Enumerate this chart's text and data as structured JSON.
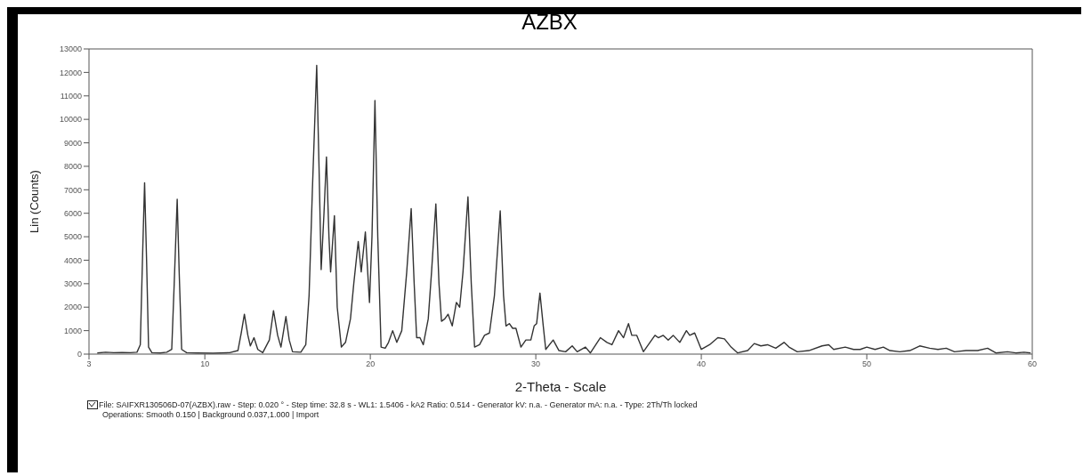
{
  "chart_data": {
    "type": "line",
    "title": "AZBX",
    "xlabel": "2-Theta - Scale",
    "ylabel": "Lin (Counts)",
    "annotations": [
      "File: SAIFXR130506D-07(AZBX).raw - Step: 0.020 ° - Step time: 32.8 s - WL1: 1.5406 - kA2 Ratio: 0.514 - Generator kV: n.a. - Generator mA: n.a. - Type: 2Th/Th locked",
      "Operations: Smooth 0.150 | Background 0.037,1.000 | Import"
    ],
    "xlim": [
      3,
      60
    ],
    "xticks": [
      3,
      10,
      20,
      30,
      40,
      50,
      60
    ],
    "ylim": [
      0,
      13000
    ],
    "yticks": [
      0,
      1000,
      2000,
      3000,
      4000,
      5000,
      6000,
      7000,
      8000,
      9000,
      10000,
      11000,
      12000,
      13000
    ],
    "grid": false,
    "legend": false,
    "marker": "none",
    "line_style": "solid",
    "series": [
      {
        "color": "#333333",
        "x": [
          3.5,
          4.0,
          4.5,
          5.0,
          5.5,
          5.9,
          6.1,
          6.25,
          6.36,
          6.48,
          6.6,
          6.8,
          7.3,
          7.7,
          8.0,
          8.15,
          8.33,
          8.45,
          8.6,
          8.9,
          9.5,
          10.5,
          11.5,
          12.0,
          12.2,
          12.39,
          12.6,
          12.75,
          12.97,
          13.2,
          13.5,
          13.9,
          14.15,
          14.4,
          14.6,
          14.9,
          15.1,
          15.3,
          15.8,
          16.1,
          16.3,
          16.5,
          16.76,
          16.9,
          17.03,
          17.2,
          17.35,
          17.5,
          17.6,
          17.83,
          18.0,
          18.25,
          18.5,
          18.8,
          19.0,
          19.27,
          19.45,
          19.7,
          19.95,
          20.1,
          20.28,
          20.45,
          20.65,
          20.9,
          21.1,
          21.35,
          21.6,
          21.9,
          22.2,
          22.47,
          22.65,
          22.8,
          23.0,
          23.2,
          23.5,
          23.7,
          23.96,
          24.15,
          24.3,
          24.5,
          24.7,
          24.95,
          25.2,
          25.4,
          25.6,
          25.9,
          26.1,
          26.3,
          26.6,
          26.9,
          27.2,
          27.5,
          27.85,
          28.05,
          28.2,
          28.4,
          28.6,
          28.8,
          29.1,
          29.4,
          29.7,
          29.9,
          30.05,
          30.25,
          30.45,
          30.6,
          31.05,
          31.4,
          31.8,
          32.2,
          32.5,
          33.0,
          33.3,
          33.9,
          34.3,
          34.6,
          35.0,
          35.3,
          35.6,
          35.8,
          36.1,
          36.5,
          37.2,
          37.4,
          37.7,
          38.0,
          38.3,
          38.7,
          39.1,
          39.3,
          39.6,
          40.0,
          40.5,
          41.0,
          41.4,
          41.8,
          42.2,
          42.8,
          43.2,
          43.6,
          44.0,
          44.5,
          45.0,
          45.3,
          45.8,
          46.5,
          47.3,
          47.7,
          48.0,
          48.7,
          49.2,
          49.6,
          50.0,
          50.5,
          51.0,
          51.4,
          52.0,
          52.6,
          53.2,
          53.8,
          54.3,
          54.8,
          55.3,
          56.0,
          56.7,
          57.3,
          57.8,
          58.5,
          59.0,
          59.5,
          59.9
        ],
        "values": [
          50,
          80,
          60,
          70,
          60,
          80,
          400,
          4500,
          7300,
          4000,
          300,
          60,
          50,
          80,
          200,
          3000,
          6600,
          3500,
          200,
          60,
          50,
          40,
          60,
          150,
          900,
          1700,
          800,
          350,
          700,
          200,
          60,
          600,
          1850,
          800,
          300,
          1600,
          600,
          100,
          80,
          400,
          2500,
          7000,
          12300,
          8000,
          3600,
          6000,
          8400,
          5000,
          3500,
          5900,
          2000,
          300,
          500,
          1500,
          3000,
          4800,
          3500,
          5200,
          2200,
          5000,
          10800,
          5000,
          300,
          250,
          500,
          1000,
          500,
          1000,
          3500,
          6200,
          3000,
          700,
          700,
          400,
          1500,
          3500,
          6400,
          3000,
          1400,
          1500,
          1700,
          1200,
          2200,
          2000,
          3500,
          6700,
          3000,
          300,
          400,
          800,
          900,
          2500,
          6100,
          2500,
          1200,
          1300,
          1100,
          1100,
          300,
          600,
          600,
          1200,
          1300,
          2600,
          1200,
          200,
          600,
          150,
          100,
          350,
          100,
          300,
          50,
          700,
          500,
          400,
          1000,
          700,
          1300,
          800,
          800,
          100,
          800,
          700,
          800,
          600,
          800,
          500,
          1000,
          800,
          900,
          200,
          400,
          700,
          650,
          300,
          50,
          150,
          450,
          350,
          400,
          250,
          500,
          300,
          100,
          150,
          350,
          400,
          200,
          300,
          200,
          200,
          300,
          200,
          300,
          150,
          100,
          150,
          350,
          250,
          200,
          250,
          100,
          150,
          150,
          250,
          50,
          100,
          50,
          80,
          50
        ]
      }
    ]
  }
}
